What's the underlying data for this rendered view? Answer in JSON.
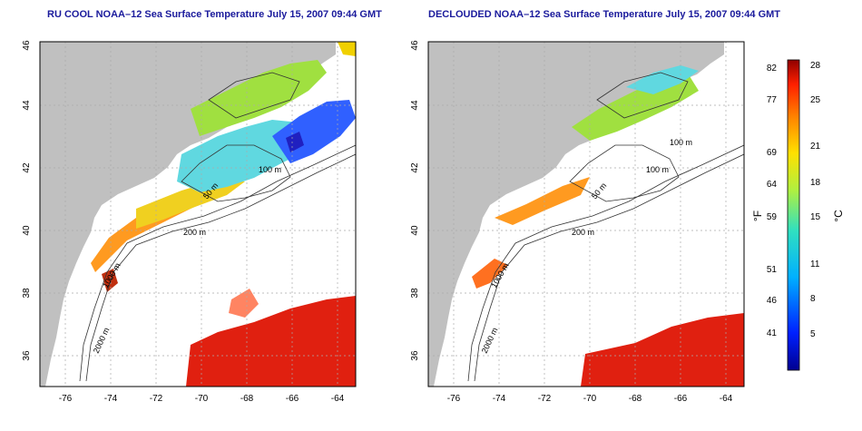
{
  "panels": [
    {
      "title": "RU COOL NOAA–12 Sea Surface Temperature July 15, 2007 09:44 GMT",
      "contour_labels": [
        "100 m",
        "50 m",
        "200 m",
        "1000 m",
        "2000 m"
      ]
    },
    {
      "title": "DECLOUDED NOAA–12 Sea Surface Temperature July 15, 2007 09:44 GMT",
      "contour_labels": [
        "100 m",
        "100 m",
        "50 m",
        "200 m",
        "1000 m",
        "2000 m"
      ]
    }
  ],
  "axes": {
    "x_ticks": [
      "-76",
      "-74",
      "-72",
      "-70",
      "-68",
      "-66",
      "-64"
    ],
    "y_ticks": [
      "46",
      "44",
      "42",
      "40",
      "38",
      "36"
    ]
  },
  "colorbar": {
    "fahrenheit_unit": "°F",
    "celsius_unit": "°C",
    "fahrenheit_ticks": [
      "82",
      "77",
      "69",
      "64",
      "59",
      "51",
      "46",
      "41"
    ],
    "celsius_ticks": [
      "28",
      "25",
      "21",
      "18",
      "15",
      "11",
      "8",
      "5"
    ]
  },
  "colors": {
    "land": "#c0c0c0",
    "ocean_nodata": "#ffffff",
    "title": "#1a1a9c",
    "grid": "#aaaaaa"
  }
}
